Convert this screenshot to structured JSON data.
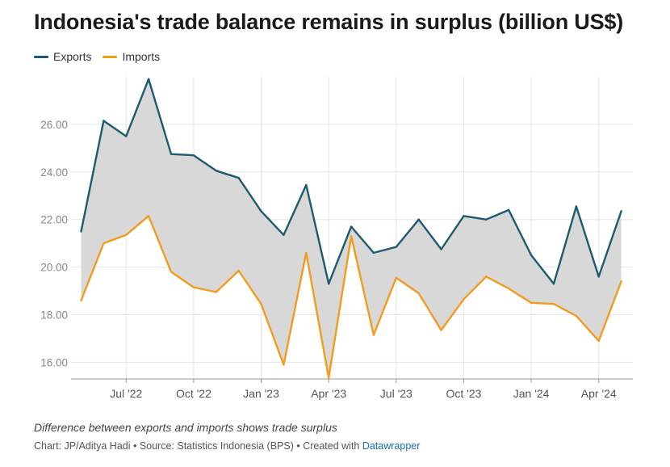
{
  "title": "Indonesia's trade balance remains in surplus (billion US$)",
  "legend": [
    {
      "name": "Exports",
      "color": "#1d5b70"
    },
    {
      "name": "Imports",
      "color": "#f29c1f"
    }
  ],
  "note": "Difference between exports and imports shows trade surplus",
  "source": {
    "prefix": "Chart: JP/Aditya Hadi • Source: Statistics Indonesia (BPS) • Created with ",
    "link": "Datawrapper"
  },
  "colors": {
    "exports": "#1d5b70",
    "imports": "#f29c1f",
    "fill": "#d8d8d8",
    "grid": "#e6e6e6"
  },
  "chart_data": {
    "type": "area",
    "title": "Indonesia's trade balance remains in surplus (billion US$)",
    "x": [
      "2022-05",
      "2022-06",
      "2022-07",
      "2022-08",
      "2022-09",
      "2022-10",
      "2022-11",
      "2022-12",
      "2023-01",
      "2023-02",
      "2023-03",
      "2023-04",
      "2023-05",
      "2023-06",
      "2023-07",
      "2023-08",
      "2023-09",
      "2023-10",
      "2023-11",
      "2023-12",
      "2024-01",
      "2024-02",
      "2024-03",
      "2024-04",
      "2024-05"
    ],
    "series": [
      {
        "name": "Exports",
        "values": [
          21.5,
          26.15,
          25.5,
          27.9,
          24.75,
          24.7,
          24.05,
          23.75,
          22.35,
          21.35,
          23.45,
          19.3,
          21.7,
          20.6,
          20.85,
          22.0,
          20.75,
          22.15,
          22.0,
          22.4,
          20.5,
          19.3,
          22.55,
          19.6,
          22.35
        ]
      },
      {
        "name": "Imports",
        "values": [
          18.6,
          21.0,
          21.35,
          22.15,
          19.8,
          19.15,
          18.95,
          19.85,
          18.45,
          15.9,
          20.6,
          15.35,
          21.3,
          17.15,
          19.55,
          18.9,
          17.35,
          18.65,
          19.6,
          19.1,
          18.5,
          18.45,
          17.95,
          16.9,
          19.4
        ]
      }
    ],
    "ylim": [
      15.3,
      28.0
    ],
    "y_ticks": [
      "16.00",
      "18.00",
      "20.00",
      "22.00",
      "24.00",
      "26.00"
    ],
    "y_tick_values": [
      16,
      18,
      20,
      22,
      24,
      26
    ],
    "x_ticks": [
      {
        "label": "Jul '22",
        "date": "2022-07"
      },
      {
        "label": "Oct '22",
        "date": "2022-10"
      },
      {
        "label": "Jan '23",
        "date": "2023-01"
      },
      {
        "label": "Apr '23",
        "date": "2023-04"
      },
      {
        "label": "Jul '23",
        "date": "2023-07"
      },
      {
        "label": "Oct '23",
        "date": "2023-10"
      },
      {
        "label": "Jan '24",
        "date": "2024-01"
      },
      {
        "label": "Apr '24",
        "date": "2024-04"
      }
    ],
    "fill_between": "surplus area shaded between series",
    "grid": true,
    "legend_position": "top-left"
  }
}
